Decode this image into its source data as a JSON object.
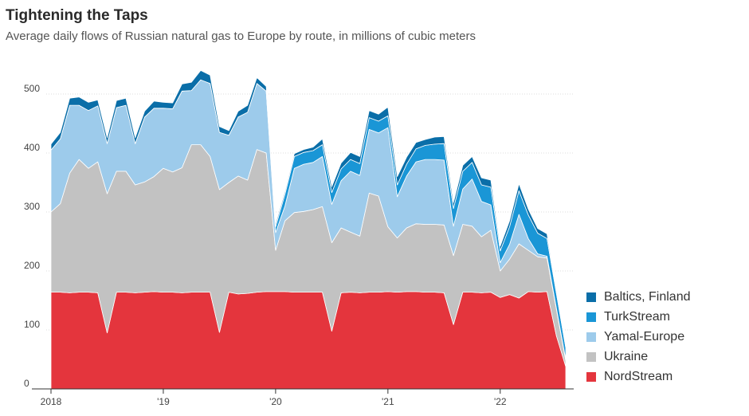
{
  "title": "Tightening the Taps",
  "subtitle": "Average daily flows of Russian natural gas to Europe by route, in millions of cubic meters",
  "chart_data": {
    "type": "area",
    "stacked": true,
    "grid": true,
    "legend_position": "bottom-right",
    "ylim": [
      0,
      500
    ],
    "y_ticks": [
      {
        "value": 0,
        "label": "0"
      },
      {
        "value": 100,
        "label": "100"
      },
      {
        "value": 200,
        "label": "200"
      },
      {
        "value": 300,
        "label": "300"
      },
      {
        "value": 400,
        "label": "400"
      },
      {
        "value": 500,
        "label": "500"
      }
    ],
    "x_ticks": [
      {
        "value": 0,
        "label": "2018"
      },
      {
        "value": 12,
        "label": "'19"
      },
      {
        "value": 24,
        "label": "'20"
      },
      {
        "value": 36,
        "label": "'21"
      },
      {
        "value": 48,
        "label": "'22"
      }
    ],
    "x_unit": "months since Jan 2018",
    "x": [
      0,
      1,
      2,
      3,
      4,
      5,
      6,
      7,
      8,
      9,
      10,
      11,
      12,
      13,
      14,
      15,
      16,
      17,
      18,
      19,
      20,
      21,
      22,
      23,
      24,
      25,
      26,
      27,
      28,
      29,
      30,
      31,
      32,
      33,
      34,
      35,
      36,
      37,
      38,
      39,
      40,
      41,
      42,
      43,
      44,
      45,
      46,
      47,
      48,
      49,
      50,
      51,
      52,
      53,
      54,
      55
    ],
    "series": [
      {
        "name": "NordStream",
        "color": "#e4353d",
        "values": [
          164,
          164,
          163,
          164,
          164,
          163,
          95,
          164,
          164,
          163,
          164,
          165,
          164,
          164,
          163,
          164,
          164,
          164,
          96,
          164,
          161,
          162,
          164,
          165,
          165,
          165,
          164,
          164,
          164,
          164,
          98,
          163,
          164,
          163,
          164,
          164,
          165,
          164,
          165,
          165,
          164,
          164,
          163,
          109,
          164,
          164,
          163,
          164,
          155,
          160,
          154,
          165,
          164,
          165,
          90,
          38
        ]
      },
      {
        "name": "Ukraine",
        "color": "#c2c2c2",
        "values": [
          136,
          150,
          203,
          225,
          210,
          222,
          236,
          205,
          205,
          183,
          187,
          195,
          210,
          204,
          212,
          250,
          250,
          230,
          242,
          186,
          200,
          192,
          242,
          235,
          70,
          120,
          135,
          137,
          140,
          145,
          150,
          110,
          102,
          96,
          168,
          163,
          110,
          92,
          108,
          115,
          115,
          115,
          115,
          117,
          115,
          112,
          95,
          105,
          45,
          60,
          92,
          70,
          60,
          57,
          45,
          10
        ]
      },
      {
        "name": "Yamal-Europe",
        "color": "#9dcbeb",
        "values": [
          105,
          110,
          115,
          92,
          98,
          95,
          85,
          108,
          112,
          70,
          110,
          116,
          102,
          107,
          130,
          92,
          110,
          124,
          97,
          80,
          100,
          115,
          112,
          105,
          30,
          25,
          75,
          80,
          80,
          85,
          65,
          80,
          103,
          103,
          108,
          107,
          168,
          70,
          88,
          105,
          110,
          110,
          110,
          50,
          60,
          80,
          60,
          43,
          14,
          25,
          50,
          20,
          5,
          3,
          2,
          2
        ]
      },
      {
        "name": "TurkStream",
        "color": "#1a96d6",
        "values": [
          0,
          0,
          0,
          0,
          0,
          0,
          0,
          0,
          0,
          0,
          0,
          0,
          0,
          0,
          0,
          0,
          0,
          0,
          0,
          0,
          0,
          0,
          0,
          0,
          10,
          20,
          20,
          20,
          20,
          20,
          20,
          20,
          20,
          20,
          20,
          20,
          20,
          20,
          20,
          22,
          24,
          26,
          28,
          30,
          30,
          28,
          28,
          30,
          20,
          30,
          40,
          40,
          35,
          30,
          25,
          20
        ]
      },
      {
        "name": "Baltics, Finland",
        "color": "#0a6ea8",
        "values": [
          10,
          11,
          12,
          14,
          14,
          10,
          10,
          12,
          12,
          10,
          10,
          12,
          10,
          10,
          12,
          14,
          16,
          14,
          10,
          8,
          10,
          12,
          10,
          8,
          5,
          5,
          5,
          5,
          6,
          10,
          10,
          10,
          12,
          12,
          12,
          12,
          15,
          14,
          12,
          11,
          10,
          12,
          12,
          10,
          10,
          10,
          12,
          12,
          8,
          10,
          12,
          10,
          8,
          8,
          5,
          5
        ]
      }
    ]
  }
}
